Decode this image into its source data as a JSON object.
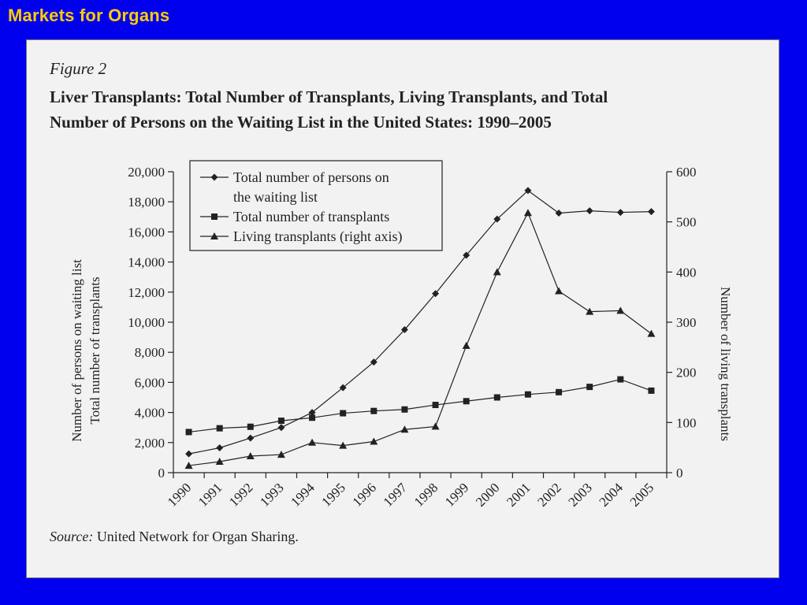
{
  "slide": {
    "title": "Markets for Organs"
  },
  "figure": {
    "label": "Figure 2",
    "title_line1": "Liver Transplants: Total Number of Transplants, Living Transplants, and Total",
    "title_line2": "Number of Persons on the Waiting List in the United States: 1990–2005",
    "source_label": "Source:",
    "source_text": "United Network for Organ Sharing."
  },
  "chart_data": {
    "type": "line",
    "categories": [
      "1990",
      "1991",
      "1992",
      "1993",
      "1994",
      "1995",
      "1996",
      "1997",
      "1998",
      "1999",
      "2000",
      "2001",
      "2002",
      "2003",
      "2004",
      "2005"
    ],
    "ylabel_left_line1": "Number of persons on waiting list",
    "ylabel_left_line2": "Total number of transplants",
    "ylabel_right": "Number of living transplants",
    "ylim_left": [
      0,
      20000
    ],
    "ylim_right": [
      0,
      600
    ],
    "left_ticks": [
      {
        "value": 0,
        "label": "0"
      },
      {
        "value": 2000,
        "label": "2,000"
      },
      {
        "value": 4000,
        "label": "4,000"
      },
      {
        "value": 6000,
        "label": "6,000"
      },
      {
        "value": 8000,
        "label": "8,000"
      },
      {
        "value": 10000,
        "label": "10,000"
      },
      {
        "value": 12000,
        "label": "12,000"
      },
      {
        "value": 14000,
        "label": "14,000"
      },
      {
        "value": 16000,
        "label": "16,000"
      },
      {
        "value": 18000,
        "label": "18,000"
      },
      {
        "value": 20000,
        "label": "20,000"
      }
    ],
    "right_ticks": [
      {
        "value": 0,
        "label": "0"
      },
      {
        "value": 100,
        "label": "100"
      },
      {
        "value": 200,
        "label": "200"
      },
      {
        "value": 300,
        "label": "300"
      },
      {
        "value": 400,
        "label": "400"
      },
      {
        "value": 500,
        "label": "500"
      },
      {
        "value": 600,
        "label": "600"
      }
    ],
    "legend_position": "top-left",
    "series": [
      {
        "name": "Total number of persons on the waiting list",
        "legend_line1": "Total number of persons on",
        "legend_line2": "the waiting list",
        "axis": "left",
        "marker": "diamond",
        "values": [
          1250,
          1650,
          2300,
          3000,
          4000,
          5650,
          7350,
          9500,
          11900,
          14450,
          16850,
          18750,
          17250,
          17400,
          17300,
          17350
        ]
      },
      {
        "name": "Total number of transplants",
        "legend_line1": "Total number of transplants",
        "axis": "left",
        "marker": "square",
        "values": [
          2700,
          2950,
          3050,
          3450,
          3650,
          3950,
          4100,
          4200,
          4500,
          4750,
          5000,
          5200,
          5350,
          5700,
          6200,
          5450
        ]
      },
      {
        "name": "Living transplants (right axis)",
        "legend_line1": "Living transplants (right axis)",
        "axis": "right",
        "marker": "triangle",
        "values": [
          14,
          22,
          33,
          36,
          60,
          54,
          62,
          86,
          92,
          253,
          400,
          518,
          362,
          321,
          323,
          277
        ]
      }
    ]
  }
}
